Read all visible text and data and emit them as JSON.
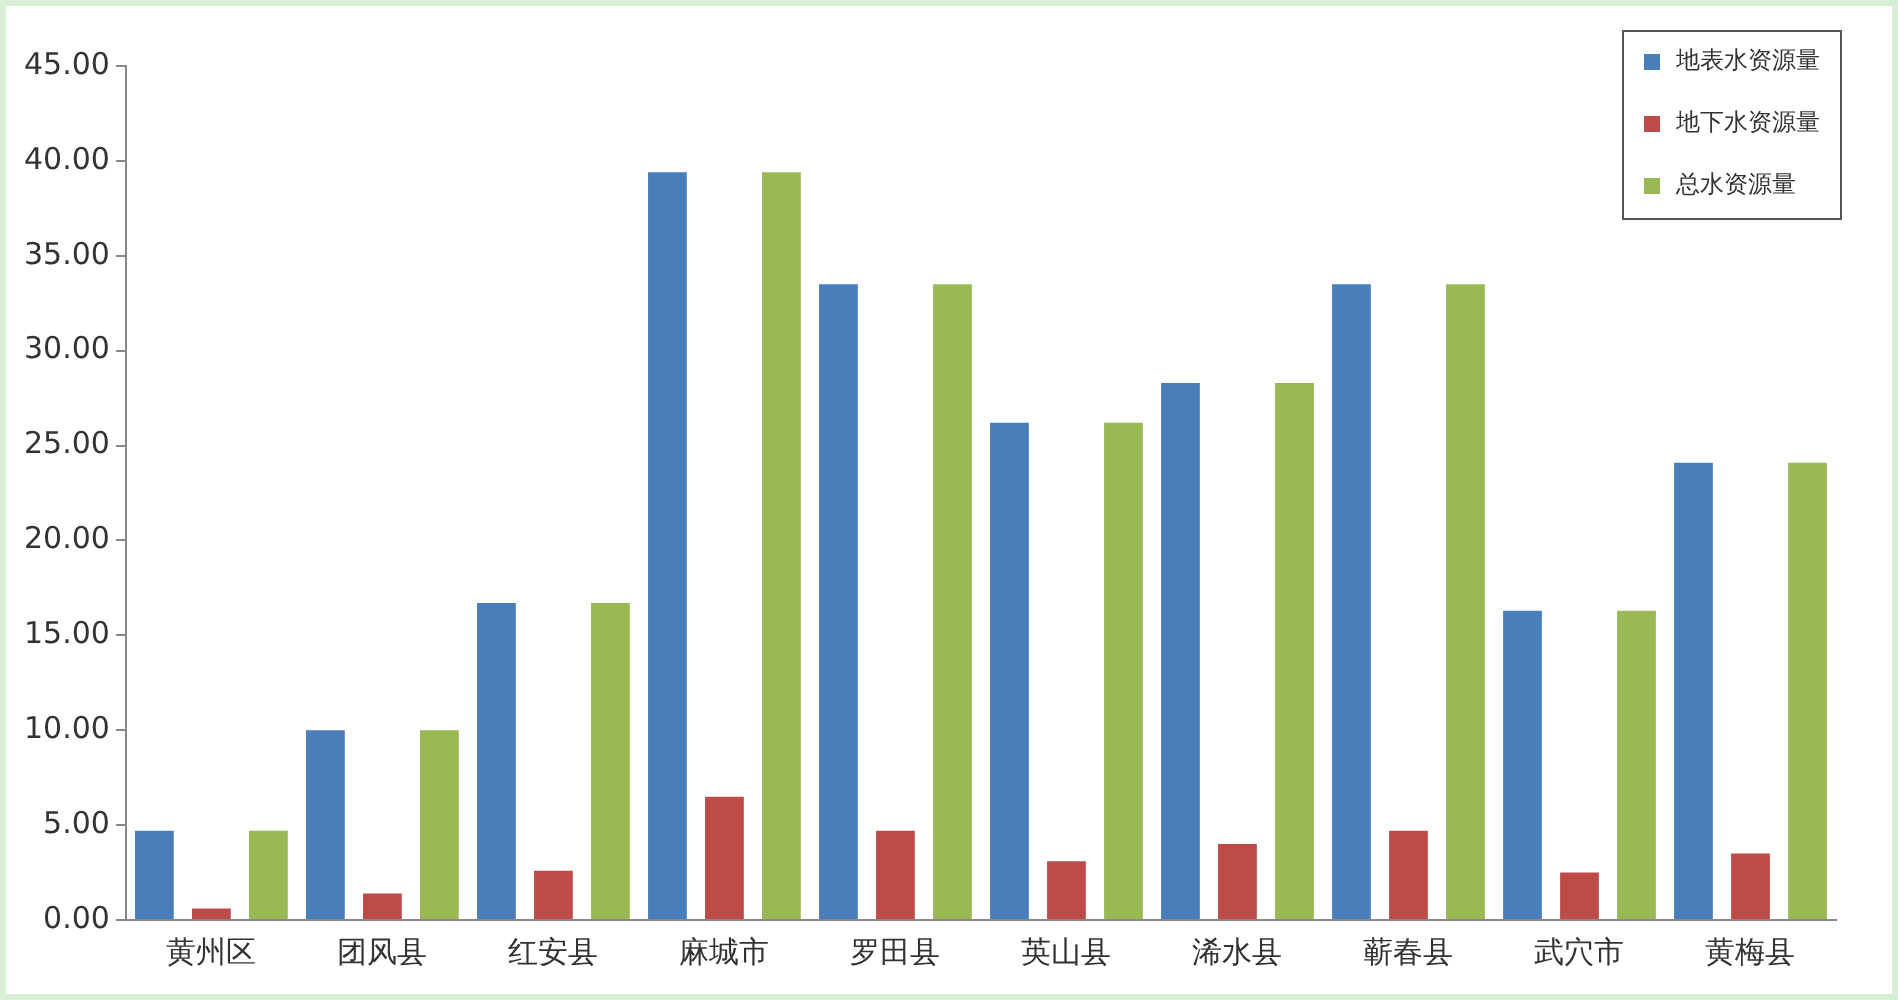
{
  "chart_data": {
    "type": "bar",
    "categories": [
      "黄州区",
      "团风县",
      "红安县",
      "麻城市",
      "罗田县",
      "英山县",
      "浠水县",
      "蕲春县",
      "武穴市",
      "黄梅县"
    ],
    "series": [
      {
        "name": "地表水资源量",
        "color": "#4a7ebb",
        "values": [
          4.7,
          10.0,
          16.7,
          39.4,
          33.5,
          26.2,
          28.3,
          33.5,
          16.3,
          24.1
        ]
      },
      {
        "name": "地下水资源量",
        "color": "#be4b48",
        "values": [
          0.6,
          1.4,
          2.6,
          6.5,
          4.7,
          3.1,
          4.0,
          4.7,
          2.5,
          3.5
        ]
      },
      {
        "name": "总水资源量",
        "color": "#98b954",
        "values": [
          4.7,
          10.0,
          16.7,
          39.4,
          33.5,
          26.2,
          28.3,
          33.5,
          16.3,
          24.1
        ]
      }
    ],
    "ylim": [
      0,
      45
    ],
    "yticks": [
      {
        "value": 0,
        "label": "0.00"
      },
      {
        "value": 5,
        "label": "5.00"
      },
      {
        "value": 10,
        "label": "10.00"
      },
      {
        "value": 15,
        "label": "15.00"
      },
      {
        "value": 20,
        "label": "20.00"
      },
      {
        "value": 25,
        "label": "25.00"
      },
      {
        "value": 30,
        "label": "30.00"
      },
      {
        "value": 35,
        "label": "35.00"
      },
      {
        "value": 40,
        "label": "40.00"
      },
      {
        "value": 45,
        "label": "45.00"
      }
    ],
    "grid": false,
    "legend": "top right"
  }
}
